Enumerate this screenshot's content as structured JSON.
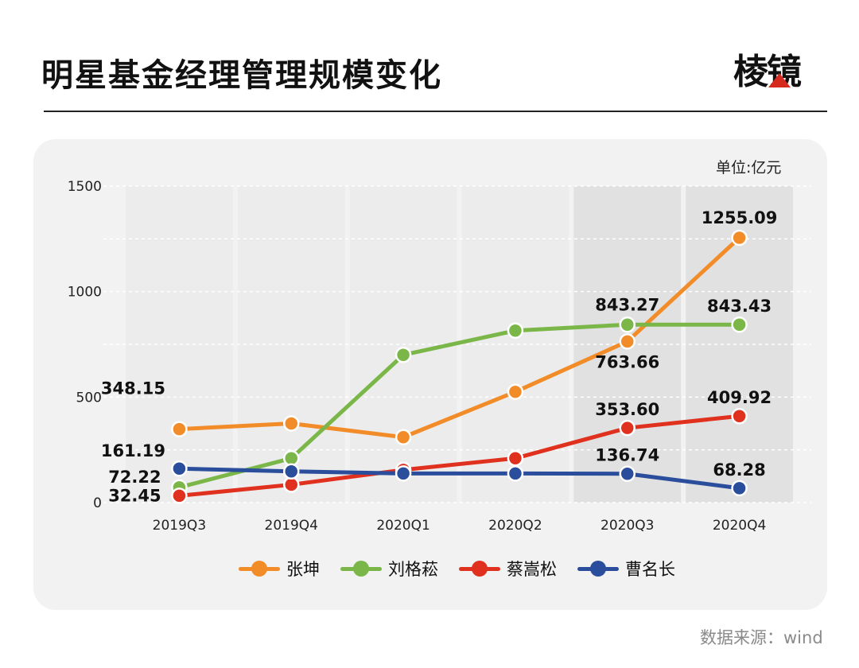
{
  "title": "明星基金经理管理规模变化",
  "logo_text": "棱镜",
  "source": "数据来源：wind",
  "chart_data": {
    "type": "line",
    "unit_label": "单位:亿元",
    "categories": [
      "2019Q3",
      "2019Q4",
      "2020Q1",
      "2020Q2",
      "2020Q3",
      "2020Q4"
    ],
    "ylim": [
      0,
      1500
    ],
    "yticks": [
      0,
      500,
      1000,
      1500
    ],
    "grid": true,
    "legend_position": "bottom",
    "highlight_categories": [
      "2020Q3",
      "2020Q4"
    ],
    "series": [
      {
        "name": "张坤",
        "color": "#f28c28",
        "values": [
          348.15,
          375,
          310,
          525,
          763.66,
          1255.09
        ]
      },
      {
        "name": "刘格菘",
        "color": "#7ab648",
        "values": [
          72.22,
          210,
          700,
          815,
          843.27,
          843.43
        ]
      },
      {
        "name": "蔡嵩松",
        "color": "#e0301e",
        "values": [
          32.45,
          85,
          155,
          210,
          353.6,
          409.92
        ]
      },
      {
        "name": "曹名长",
        "color": "#2a4e9b",
        "values": [
          161.19,
          148,
          138,
          138,
          136.74,
          68.28
        ]
      }
    ],
    "data_labels": [
      {
        "series": "张坤",
        "category": "2019Q3",
        "text": "348.15"
      },
      {
        "series": "曹名长",
        "category": "2019Q3",
        "text": "161.19"
      },
      {
        "series": "刘格菘",
        "category": "2019Q3",
        "text": "72.22"
      },
      {
        "series": "蔡嵩松",
        "category": "2019Q3",
        "text": "32.45"
      },
      {
        "series": "刘格菘",
        "category": "2020Q3",
        "text": "843.27"
      },
      {
        "series": "张坤",
        "category": "2020Q3",
        "text": "763.66"
      },
      {
        "series": "蔡嵩松",
        "category": "2020Q3",
        "text": "353.60"
      },
      {
        "series": "曹名长",
        "category": "2020Q3",
        "text": "136.74"
      },
      {
        "series": "张坤",
        "category": "2020Q4",
        "text": "1255.09"
      },
      {
        "series": "刘格菘",
        "category": "2020Q4",
        "text": "843.43"
      },
      {
        "series": "蔡嵩松",
        "category": "2020Q4",
        "text": "409.92"
      },
      {
        "series": "曹名长",
        "category": "2020Q4",
        "text": "68.28"
      }
    ]
  }
}
